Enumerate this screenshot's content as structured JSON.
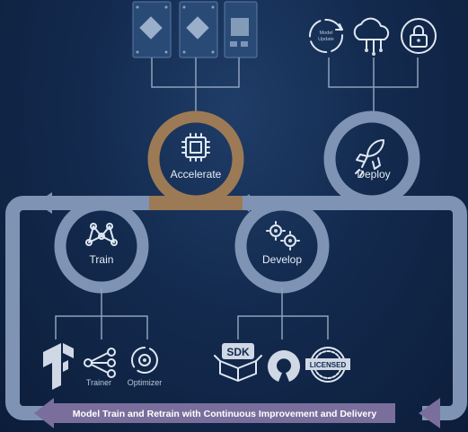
{
  "stages": {
    "accelerate": "Accelerate",
    "deploy": "Deploy",
    "train": "Train",
    "develop": "Develop"
  },
  "deploy_icons": {
    "model_update_line1": "Model",
    "model_update_line2": "Update"
  },
  "train_tools": {
    "trainer": "Trainer",
    "optimizer": "Optimizer"
  },
  "develop_tools": {
    "sdk": "SDK",
    "licensed": "LICENSED"
  },
  "banner": "Model Train and Retrain with Continuous Improvement and Delivery",
  "colors": {
    "background": "#132a4e",
    "track": "#7f94b4",
    "accelerate_ring": "#9c7a55",
    "banner": "#7a6f9c",
    "text": "#e6ecf5"
  }
}
